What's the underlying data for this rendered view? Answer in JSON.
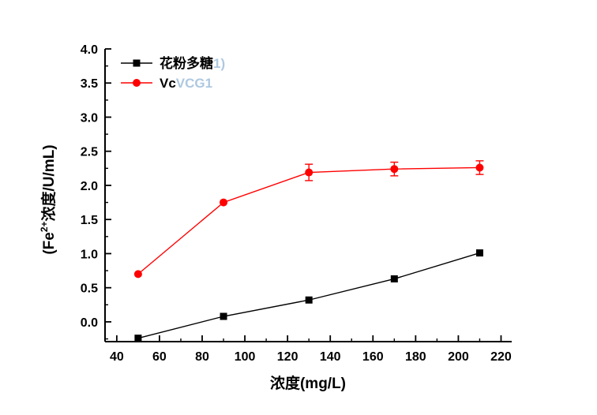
{
  "chart_data": {
    "type": "line",
    "title": "",
    "xlabel": "浓度(mg/L)",
    "ylabel": "(Fe2+浓度/U/mL)",
    "ylabel_parts": [
      "(Fe",
      "2+",
      "浓度/U/mL)"
    ],
    "xlim": [
      34.5,
      225
    ],
    "ylim": [
      -0.29,
      4.0
    ],
    "x_major_ticks": [
      40,
      60,
      80,
      100,
      120,
      140,
      160,
      180,
      200,
      220
    ],
    "x_minor_ticks": [
      50,
      70,
      90,
      110,
      130,
      150,
      170,
      190,
      210
    ],
    "y_major_ticks": [
      0.0,
      0.5,
      1.0,
      1.5,
      2.0,
      2.5,
      3.0,
      3.5,
      4.0
    ],
    "y_minor_ticks": [
      -0.25,
      0.25,
      0.75,
      1.25,
      1.75,
      2.25,
      2.75,
      3.25,
      3.75
    ],
    "grid": false,
    "legend_position": "top-left-inside",
    "ghost_color": "#a6c3de",
    "axis_color": "#000000",
    "series": [
      {
        "name": "花粉多糖",
        "ghost_text": "1)",
        "color": "#000000",
        "marker": "square",
        "x": [
          50,
          90,
          130,
          170,
          210
        ],
        "y": [
          -0.24,
          0.08,
          0.32,
          0.63,
          1.01
        ],
        "yerr": [
          0,
          0,
          0,
          0,
          0
        ]
      },
      {
        "name": "Vc",
        "ghost_text": "VCG1",
        "color": "#ff0000",
        "marker": "circle",
        "x": [
          50,
          90,
          130,
          170,
          210
        ],
        "y": [
          0.7,
          1.75,
          2.19,
          2.24,
          2.26
        ],
        "yerr": [
          0,
          0,
          0.12,
          0.1,
          0.1
        ]
      }
    ]
  }
}
